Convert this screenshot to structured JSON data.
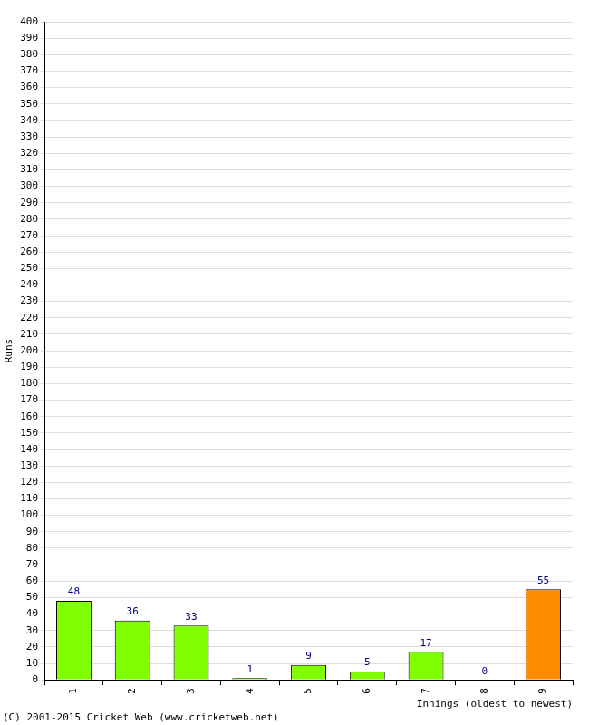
{
  "chart_data": {
    "type": "bar",
    "categories": [
      "1",
      "2",
      "3",
      "4",
      "5",
      "6",
      "7",
      "8",
      "9"
    ],
    "values": [
      48,
      36,
      33,
      1,
      9,
      5,
      17,
      0,
      55
    ],
    "colors": [
      "#80ff00",
      "#80ff00",
      "#80ff00",
      "#80ff00",
      "#80ff00",
      "#80ff00",
      "#80ff00",
      "#80ff00",
      "#ff8c00"
    ],
    "x_label": "Innings (oldest to newest)",
    "y_label": "Runs",
    "annotations": [
      "(C) 2001-2015 Cricket Web (www.cricketweb.net)"
    ],
    "ylim": [
      0,
      400
    ],
    "yticks": [
      0,
      10,
      20,
      30,
      40,
      50,
      60,
      70,
      80,
      90,
      100,
      110,
      120,
      130,
      140,
      150,
      160,
      170,
      180,
      190,
      200,
      210,
      220,
      230,
      240,
      250,
      260,
      270,
      280,
      290,
      300,
      310,
      320,
      330,
      340,
      350,
      360,
      370,
      380,
      390,
      400
    ],
    "grid": true,
    "data_labels": true
  }
}
